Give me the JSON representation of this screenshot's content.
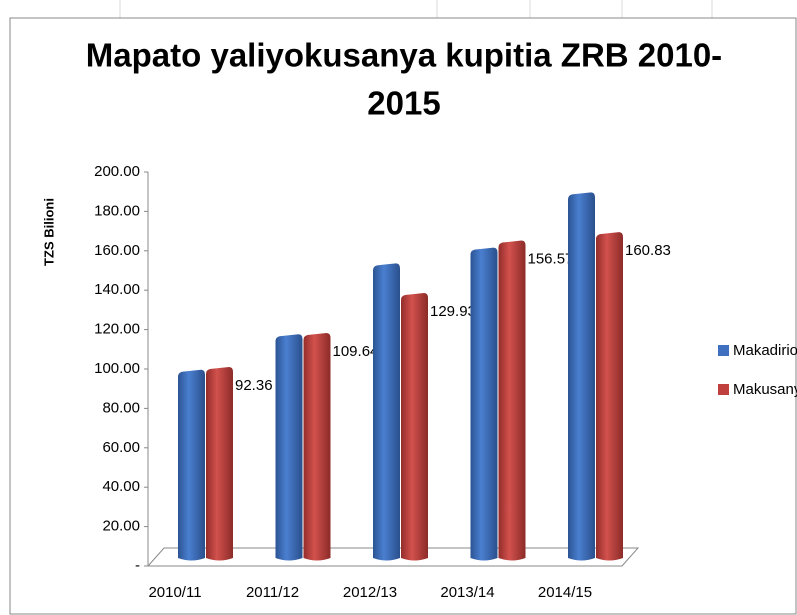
{
  "chart_data": {
    "type": "bar3d",
    "title": [
      "Mapato yaliyokusanya kupitia ZRB 2010-",
      "2015"
    ],
    "y_label": "TZS Bilioni",
    "categories": [
      "2010/11",
      "2011/12",
      "2012/13",
      "2013/14",
      "2014/15"
    ],
    "series": [
      {
        "name": "Makadirio",
        "color": "#3f6fbf",
        "values": [
          91,
          109,
          145,
          153,
          181
        ]
      },
      {
        "name": "Makusanyo",
        "color": "#c0403d",
        "values": [
          92.36,
          109.64,
          129.93,
          156.57,
          160.83
        ],
        "show_labels": true
      }
    ],
    "ylim": [
      0,
      200
    ],
    "yticks": [
      {
        "value": 0,
        "label": "-"
      },
      {
        "value": 20,
        "label": "20.00"
      },
      {
        "value": 40,
        "label": "40.00"
      },
      {
        "value": 60,
        "label": "60.00"
      },
      {
        "value": 80,
        "label": "80.00"
      },
      {
        "value": 100,
        "label": "100.00"
      },
      {
        "value": 120,
        "label": "120.00"
      },
      {
        "value": 140,
        "label": "140.00"
      },
      {
        "value": 160,
        "label": "160.00"
      },
      {
        "value": 180,
        "label": "180.00"
      },
      {
        "value": 200,
        "label": "200.00"
      }
    ],
    "legend": "right"
  }
}
